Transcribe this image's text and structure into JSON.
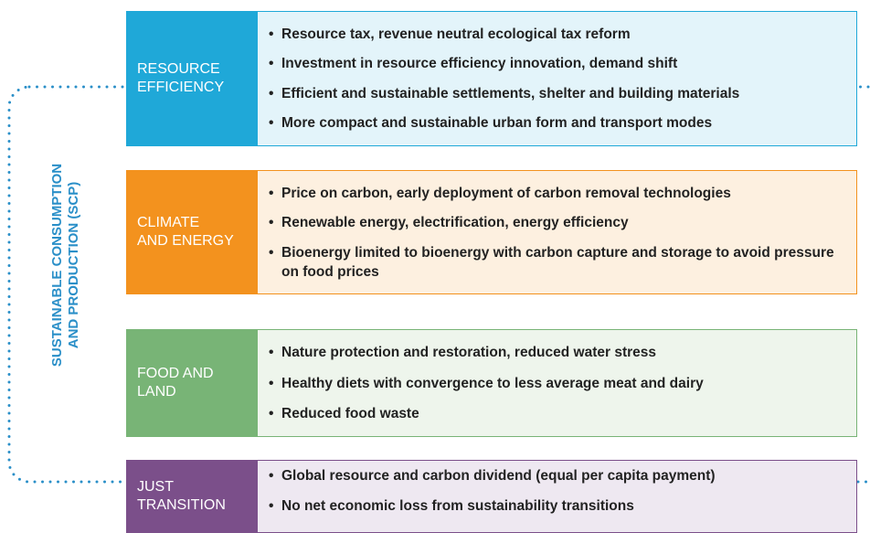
{
  "side_label": [
    "SUSTAINABLE CONSUMPTION",
    "AND PRODUCTION (SCP)"
  ],
  "sections": [
    {
      "title": [
        "RESOURCE",
        "EFFICIENCY"
      ],
      "bullets": [
        "Resource tax, revenue neutral ecological tax reform",
        "Investment in resource efficiency innovation, demand shift",
        "Efficient and sustainable settlements, shelter and building materials",
        "More compact and sustainable urban form and transport modes"
      ]
    },
    {
      "title": [
        "CLIMATE",
        "AND ENERGY"
      ],
      "bullets": [
        "Price on carbon, early deployment of carbon removal technologies",
        "Renewable energy, electrification, energy efficiency",
        "Bioenergy limited to bioenergy with carbon capture and storage to avoid pressure on food prices"
      ]
    },
    {
      "title": [
        "FOOD AND",
        "LAND"
      ],
      "bullets": [
        "Nature protection and restoration, reduced water stress",
        "Healthy diets with convergence to less average meat and dairy",
        "Reduced food waste"
      ]
    },
    {
      "title": [
        "JUST",
        "TRANSITION"
      ],
      "bullets": [
        "Global resource and carbon dividend (equal per capita payment)",
        "No net economic loss from sustainability transitions"
      ]
    }
  ]
}
